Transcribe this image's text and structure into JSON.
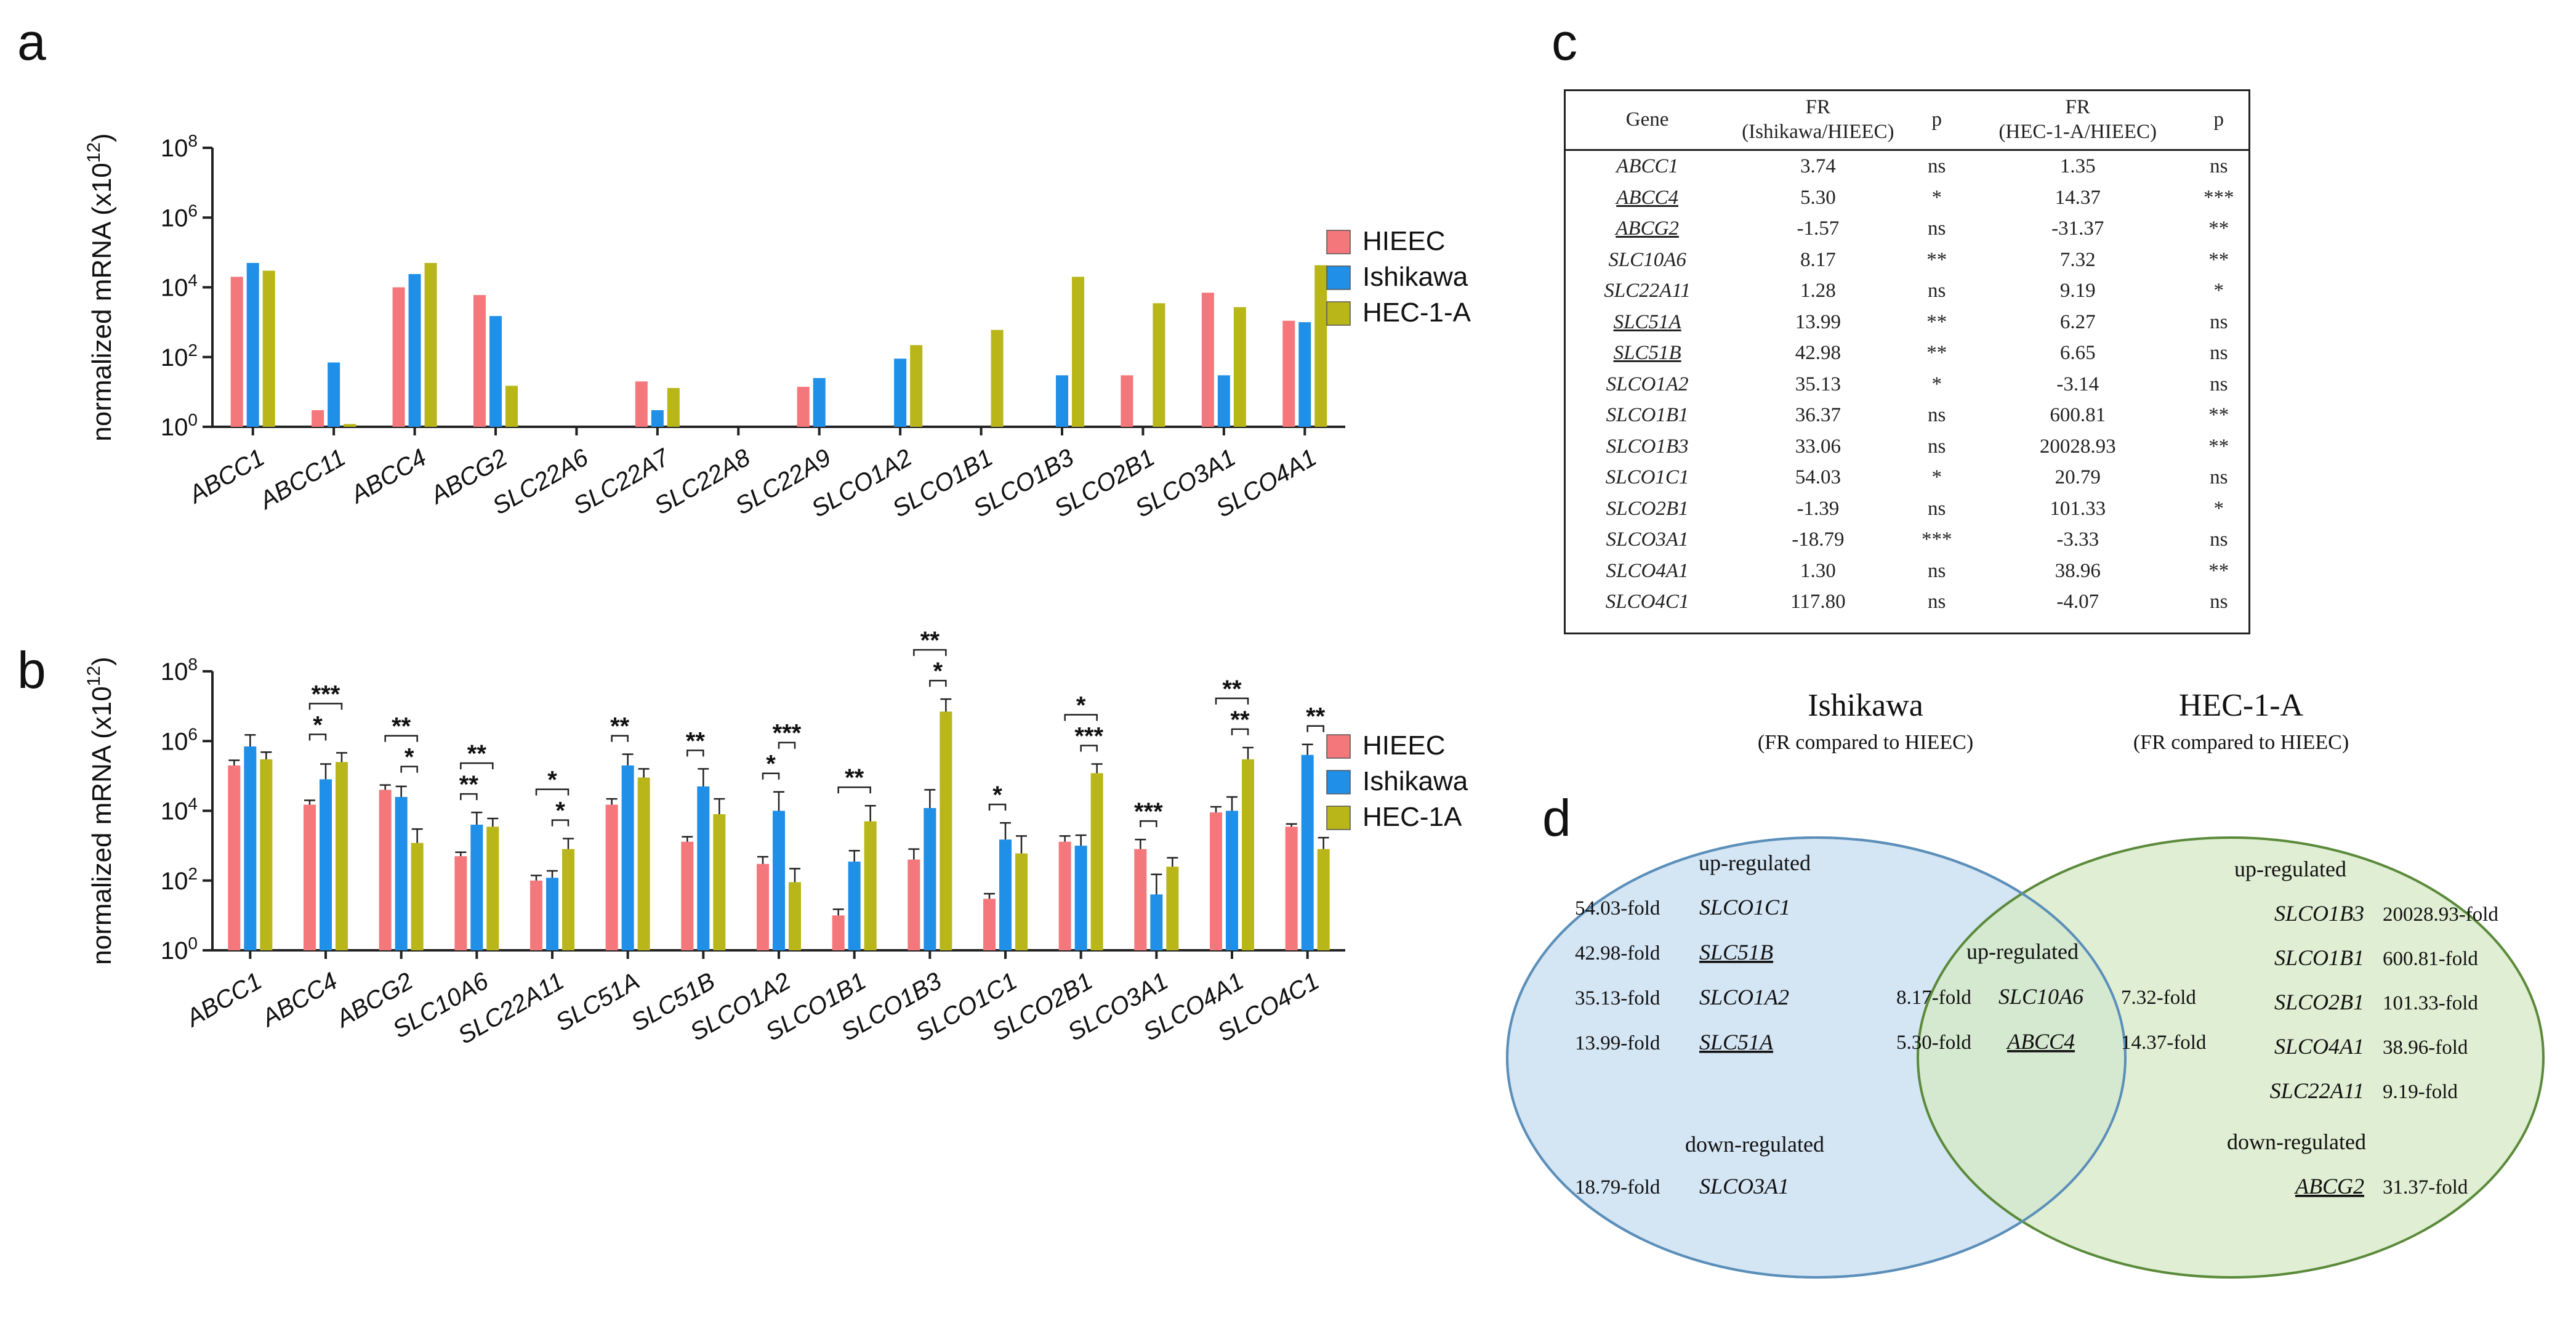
{
  "panel_labels": {
    "a": "a",
    "b": "b",
    "c": "c",
    "d": "d"
  },
  "chart_data": [
    {
      "id": "a",
      "type": "bar",
      "ylabel": "normalized mRNA (x10",
      "ylabel_sup": "12",
      "ylabel_end": ")",
      "yscale": "log",
      "ylim": [
        1,
        100000000
      ],
      "yticks": [
        {
          "base": "10",
          "exp": "0"
        },
        {
          "base": "10",
          "exp": "2"
        },
        {
          "base": "10",
          "exp": "4"
        },
        {
          "base": "10",
          "exp": "6"
        },
        {
          "base": "10",
          "exp": "8"
        }
      ],
      "categories": [
        "ABCC1",
        "ABCC11",
        "ABCC4",
        "ABCG2",
        "SLC22A6",
        "SLC22A7",
        "SLC22A8",
        "SLC22A9",
        "SLCO1A2",
        "SLCO1B1",
        "SLCO1B3",
        "SLCO2B1",
        "SLCO3A1",
        "SLCO4A1"
      ],
      "legend_position": "right",
      "series": [
        {
          "name": "HIEEC",
          "color": "#f4777b",
          "values": [
            20000,
            3,
            10000,
            6000,
            null,
            20,
            null,
            14,
            null,
            null,
            null,
            30,
            7000,
            1100
          ]
        },
        {
          "name": "Ishikawa",
          "color": "#1f8fe8",
          "values": [
            50000,
            70,
            24000,
            1500,
            null,
            3,
            null,
            25,
            90,
            null,
            30,
            null,
            30,
            1000
          ]
        },
        {
          "name": "HEC-1-A",
          "color": "#b8b618",
          "values": [
            30000,
            1.2,
            50000,
            15,
            null,
            13,
            null,
            null,
            220,
            600,
            20000,
            3500,
            2700,
            43000
          ]
        }
      ]
    },
    {
      "id": "b",
      "type": "bar",
      "ylabel": "normalized mRNA (x10",
      "ylabel_sup": "12",
      "ylabel_end": ")",
      "yscale": "log",
      "ylim": [
        1,
        100000000
      ],
      "yticks": [
        {
          "base": "10",
          "exp": "0"
        },
        {
          "base": "10",
          "exp": "2"
        },
        {
          "base": "10",
          "exp": "4"
        },
        {
          "base": "10",
          "exp": "6"
        },
        {
          "base": "10",
          "exp": "8"
        }
      ],
      "categories": [
        "ABCC1",
        "ABCC4",
        "ABCG2",
        "SLC10A6",
        "SLC22A11",
        "SLC51A",
        "SLC51B",
        "SLCO1A2",
        "SLCO1B1",
        "SLCO1B3",
        "SLCO1C1",
        "SLCO2B1",
        "SLCO3A1",
        "SLCO4A1",
        "SLCO4C1"
      ],
      "legend_position": "right",
      "series": [
        {
          "name": "HIEEC",
          "color": "#f4777b",
          "values": [
            200000,
            15000,
            40000,
            500,
            100,
            15000,
            1300,
            300,
            10,
            400,
            30,
            1300,
            800,
            9000,
            3500
          ],
          "errors": [
            280000,
            20000,
            55000,
            650,
            140,
            22000,
            1800,
            480,
            15,
            800,
            42,
            1900,
            1500,
            13000,
            4200
          ]
        },
        {
          "name": "Ishikawa",
          "color": "#1f8fe8",
          "values": [
            700000,
            80000,
            25000,
            4000,
            120,
            200000,
            50000,
            10000,
            350,
            12000,
            1500,
            1000,
            40,
            10000,
            400000
          ],
          "errors": [
            1500000,
            220000,
            50000,
            9000,
            190,
            420000,
            160000,
            35000,
            720,
            40000,
            4500,
            2000,
            150,
            25000,
            800000
          ]
        },
        {
          "name": "HEC-1A",
          "color": "#b8b618",
          "values": [
            300000,
            250000,
            1200,
            3500,
            800,
            90000,
            8000,
            90,
            5000,
            7000000,
            600,
            120000,
            250,
            300000,
            800
          ],
          "errors": [
            480000,
            460000,
            3000,
            6000,
            1600,
            160000,
            22000,
            220,
            14000,
            16000000,
            1900,
            220000,
            450,
            650000,
            1700
          ]
        }
      ],
      "significance": [
        {
          "category": "ABCC4",
          "pairs": [
            [
              "HIEEC",
              "HEC-1A",
              "***"
            ],
            [
              "HIEEC",
              "Ishikawa",
              "*"
            ]
          ]
        },
        {
          "category": "ABCG2",
          "pairs": [
            [
              "HIEEC",
              "HEC-1A",
              "**"
            ],
            [
              "Ishikawa",
              "HEC-1A",
              "*"
            ]
          ]
        },
        {
          "category": "SLC10A6",
          "pairs": [
            [
              "HIEEC",
              "HEC-1A",
              "**"
            ],
            [
              "HIEEC",
              "Ishikawa",
              "**"
            ]
          ]
        },
        {
          "category": "SLC22A11",
          "pairs": [
            [
              "HIEEC",
              "HEC-1A",
              "*"
            ],
            [
              "Ishikawa",
              "HEC-1A",
              "*"
            ]
          ]
        },
        {
          "category": "SLC51A",
          "pairs": [
            [
              "HIEEC",
              "Ishikawa",
              "**"
            ]
          ]
        },
        {
          "category": "SLC51B",
          "pairs": [
            [
              "HIEEC",
              "Ishikawa",
              "**"
            ]
          ]
        },
        {
          "category": "SLCO1A2",
          "pairs": [
            [
              "HIEEC",
              "Ishikawa",
              "*"
            ],
            [
              "Ishikawa",
              "HEC-1A",
              "***"
            ]
          ]
        },
        {
          "category": "SLCO1B1",
          "pairs": [
            [
              "HIEEC",
              "HEC-1A",
              "**"
            ]
          ]
        },
        {
          "category": "SLCO1B3",
          "pairs": [
            [
              "HIEEC",
              "HEC-1A",
              "**"
            ],
            [
              "Ishikawa",
              "HEC-1A",
              "*"
            ]
          ]
        },
        {
          "category": "SLCO1C1",
          "pairs": [
            [
              "HIEEC",
              "Ishikawa",
              "*"
            ]
          ]
        },
        {
          "category": "SLCO2B1",
          "pairs": [
            [
              "HIEEC",
              "HEC-1A",
              "*"
            ],
            [
              "Ishikawa",
              "HEC-1A",
              "***"
            ]
          ]
        },
        {
          "category": "SLCO3A1",
          "pairs": [
            [
              "HIEEC",
              "Ishikawa",
              "***"
            ]
          ]
        },
        {
          "category": "SLCO4A1",
          "pairs": [
            [
              "HIEEC",
              "HEC-1A",
              "**"
            ],
            [
              "Ishikawa",
              "HEC-1A",
              "**"
            ]
          ]
        },
        {
          "category": "SLCO4C1",
          "pairs": [
            [
              "Ishikawa",
              "HEC-1A",
              "**"
            ]
          ]
        }
      ]
    },
    {
      "id": "c",
      "type": "table",
      "headers": {
        "gene": "Gene",
        "fr1_line1": "FR",
        "fr1_line2": "(Ishikawa/HIEEC)",
        "p1": "p",
        "fr2_line1": "FR",
        "fr2_line2": "(HEC-1-A/HIEEC)",
        "p2": "p"
      },
      "rows": [
        {
          "gene": "ABCC1",
          "ul": false,
          "fr1": "3.74",
          "p1": "ns",
          "fr2": "1.35",
          "p2": "ns"
        },
        {
          "gene": "ABCC4",
          "ul": true,
          "fr1": "5.30",
          "p1": "*",
          "fr2": "14.37",
          "p2": "***"
        },
        {
          "gene": "ABCG2",
          "ul": true,
          "fr1": "-1.57",
          "p1": "ns",
          "fr2": "-31.37",
          "p2": "**"
        },
        {
          "gene": "SLC10A6",
          "ul": false,
          "fr1": "8.17",
          "p1": "**",
          "fr2": "7.32",
          "p2": "**"
        },
        {
          "gene": "SLC22A11",
          "ul": false,
          "fr1": "1.28",
          "p1": "ns",
          "fr2": "9.19",
          "p2": "*"
        },
        {
          "gene": "SLC51A",
          "ul": true,
          "fr1": "13.99",
          "p1": "**",
          "fr2": "6.27",
          "p2": "ns"
        },
        {
          "gene": "SLC51B",
          "ul": true,
          "fr1": "42.98",
          "p1": "**",
          "fr2": "6.65",
          "p2": "ns"
        },
        {
          "gene": "SLCO1A2",
          "ul": false,
          "fr1": "35.13",
          "p1": "*",
          "fr2": "-3.14",
          "p2": "ns"
        },
        {
          "gene": "SLCO1B1",
          "ul": false,
          "fr1": "36.37",
          "p1": "ns",
          "fr2": "600.81",
          "p2": "**"
        },
        {
          "gene": "SLCO1B3",
          "ul": false,
          "fr1": "33.06",
          "p1": "ns",
          "fr2": "20028.93",
          "p2": "**"
        },
        {
          "gene": "SLCO1C1",
          "ul": false,
          "fr1": "54.03",
          "p1": "*",
          "fr2": "20.79",
          "p2": "ns"
        },
        {
          "gene": "SLCO2B1",
          "ul": false,
          "fr1": "-1.39",
          "p1": "ns",
          "fr2": "101.33",
          "p2": "*"
        },
        {
          "gene": "SLCO3A1",
          "ul": false,
          "fr1": "-18.79",
          "p1": "***",
          "fr2": "-3.33",
          "p2": "ns"
        },
        {
          "gene": "SLCO4A1",
          "ul": false,
          "fr1": "1.30",
          "p1": "ns",
          "fr2": "38.96",
          "p2": "**"
        },
        {
          "gene": "SLCO4C1",
          "ul": false,
          "fr1": "117.80",
          "p1": "ns",
          "fr2": "-4.07",
          "p2": "ns"
        }
      ]
    }
  ],
  "venn": {
    "left_title": "Ishikawa",
    "left_sub": "(FR compared to HIEEC)",
    "right_title": "HEC-1-A",
    "right_sub": "(FR compared to HIEEC)",
    "colors": {
      "left_fill": "#cfe2f3",
      "left_stroke": "#5b8fb9",
      "right_fill": "#d5e8c4",
      "right_stroke": "#5a8a3a",
      "overlap_fill": "#b8d7c4"
    },
    "left_up_heading": "up-regulated",
    "left_up": [
      {
        "fold": "54.03-fold",
        "gene": "SLCO1C1",
        "ul": false
      },
      {
        "fold": "42.98-fold",
        "gene": "SLC51B",
        "ul": true
      },
      {
        "fold": "35.13-fold",
        "gene": "SLCO1A2",
        "ul": false
      },
      {
        "fold": "13.99-fold",
        "gene": "SLC51A",
        "ul": true
      }
    ],
    "left_down_heading": "down-regulated",
    "left_down": [
      {
        "fold": "18.79-fold",
        "gene": "SLCO3A1",
        "ul": false
      }
    ],
    "center_heading": "up-regulated",
    "center": [
      {
        "left_fold": "8.17-fold",
        "gene": "SLC10A6",
        "ul": false,
        "right_fold": "7.32-fold"
      },
      {
        "left_fold": "5.30-fold",
        "gene": "ABCC4",
        "ul": true,
        "right_fold": "14.37-fold"
      }
    ],
    "right_up_heading": "up-regulated",
    "right_up": [
      {
        "gene": "SLCO1B3",
        "fold": "20028.93-fold",
        "ul": false
      },
      {
        "gene": "SLCO1B1",
        "fold": "600.81-fold",
        "ul": false
      },
      {
        "gene": "SLCO2B1",
        "fold": "101.33-fold",
        "ul": false
      },
      {
        "gene": "SLCO4A1",
        "fold": "38.96-fold",
        "ul": false
      },
      {
        "gene": "SLC22A11",
        "fold": "9.19-fold",
        "ul": false
      }
    ],
    "right_down_heading": "down-regulated",
    "right_down": [
      {
        "gene": "ABCG2",
        "fold": "31.37-fold",
        "ul": true
      }
    ]
  }
}
